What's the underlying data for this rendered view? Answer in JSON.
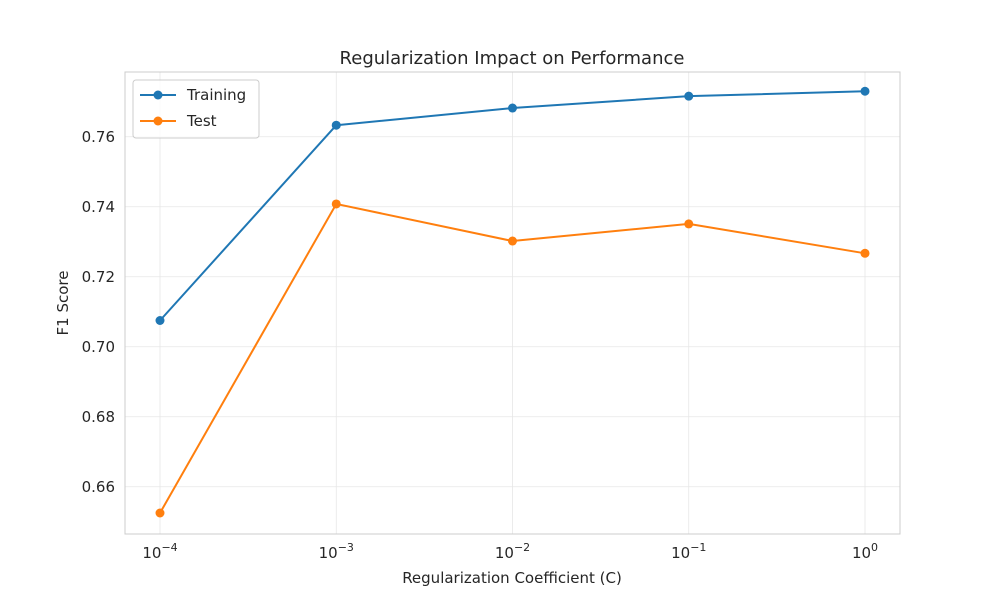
{
  "chart_data": {
    "type": "line",
    "title": "Regularization Impact on Performance",
    "xlabel": "Regularization Coefficient (C)",
    "ylabel": "F1 Score",
    "x_scale": "log",
    "x": [
      0.0001,
      0.001,
      0.01,
      0.1,
      1
    ],
    "x_tick_labels": [
      {
        "base": "10",
        "exp": "−4"
      },
      {
        "base": "10",
        "exp": "−3"
      },
      {
        "base": "10",
        "exp": "−2"
      },
      {
        "base": "10",
        "exp": "−1"
      },
      {
        "base": "10",
        "exp": "0"
      }
    ],
    "y_ticks": [
      0.66,
      0.68,
      0.7,
      0.72,
      0.74,
      0.76
    ],
    "y_tick_labels": [
      "0.66",
      "0.68",
      "0.70",
      "0.72",
      "0.74",
      "0.76"
    ],
    "ylim": [
      0.6465,
      0.7785
    ],
    "grid": true,
    "legend_position": "top-left",
    "series": [
      {
        "name": "Training",
        "color": "#1f77b4",
        "values": [
          0.7075,
          0.7633,
          0.7682,
          0.7716,
          0.773
        ]
      },
      {
        "name": "Test",
        "color": "#ff7f0e",
        "values": [
          0.6525,
          0.7408,
          0.7302,
          0.7351,
          0.7267
        ]
      }
    ]
  }
}
